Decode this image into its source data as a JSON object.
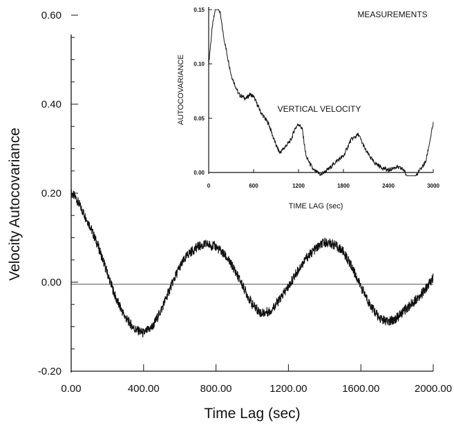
{
  "chart_data": [
    {
      "type": "line",
      "xlabel": "Time Lag (sec)",
      "ylabel": "Velocity Autocovariance",
      "xlim": [
        0,
        2000
      ],
      "ylim": [
        -0.2,
        0.6
      ],
      "xticks": [
        "0.00",
        "400.00",
        "800.00",
        "1200.00",
        "1600.00",
        "2000.00"
      ],
      "yticks": [
        "-0.20",
        "0.00",
        "0.20",
        "0.40",
        "0.60"
      ],
      "grid": false,
      "series": [
        {
          "x": [
            0,
            25,
            50,
            100,
            150,
            200,
            250,
            300,
            350,
            400,
            450,
            500,
            550,
            600,
            650,
            700,
            750,
            800,
            850,
            900,
            950,
            1000,
            1050,
            1100,
            1150,
            1200,
            1250,
            1300,
            1350,
            1400,
            1450,
            1500,
            1550,
            1600,
            1650,
            1700,
            1750,
            1800,
            1850,
            1900,
            1950,
            2000
          ],
          "values": [
            0.2,
            0.19,
            0.17,
            0.13,
            0.08,
            0.02,
            -0.04,
            -0.08,
            -0.105,
            -0.115,
            -0.1,
            -0.06,
            -0.01,
            0.035,
            0.065,
            0.08,
            0.085,
            0.08,
            0.06,
            0.03,
            -0.01,
            -0.05,
            -0.07,
            -0.065,
            -0.04,
            -0.01,
            0.025,
            0.055,
            0.075,
            0.09,
            0.085,
            0.07,
            0.035,
            -0.01,
            -0.05,
            -0.08,
            -0.09,
            -0.08,
            -0.06,
            -0.04,
            -0.02,
            0.01
          ]
        }
      ]
    },
    {
      "type": "line",
      "title": "MEASUREMENTS",
      "xlabel": "TIME LAG (sec)",
      "ylabel": "AUTOCOVARIANCE",
      "xlim": [
        0,
        3000
      ],
      "ylim": [
        0,
        0.15
      ],
      "xticks": [
        "0",
        "600",
        "1200",
        "1800",
        "2400",
        "3000"
      ],
      "yticks": [
        "0.00",
        "0.05",
        "0.10",
        "0.15"
      ],
      "annotations": [
        "VERTICAL VELOCITY"
      ],
      "grid": false,
      "series": [
        {
          "x": [
            0,
            50,
            100,
            150,
            200,
            300,
            400,
            500,
            550,
            600,
            700,
            800,
            900,
            950,
            1000,
            1100,
            1150,
            1200,
            1250,
            1300,
            1400,
            1500,
            1600,
            1700,
            1800,
            1900,
            2000,
            2100,
            2200,
            2300,
            2400,
            2500,
            2600,
            2700,
            2800,
            2900,
            3000
          ],
          "values": [
            0.1,
            0.135,
            0.155,
            0.148,
            0.125,
            0.09,
            0.072,
            0.068,
            0.072,
            0.07,
            0.055,
            0.045,
            0.025,
            0.018,
            0.022,
            0.03,
            0.04,
            0.045,
            0.04,
            0.015,
            0.002,
            -0.002,
            0.003,
            0.01,
            0.015,
            0.03,
            0.035,
            0.02,
            0.01,
            0.005,
            0.002,
            0.005,
            0.003,
            -0.01,
            0.0,
            0.01,
            0.045
          ]
        }
      ]
    }
  ]
}
